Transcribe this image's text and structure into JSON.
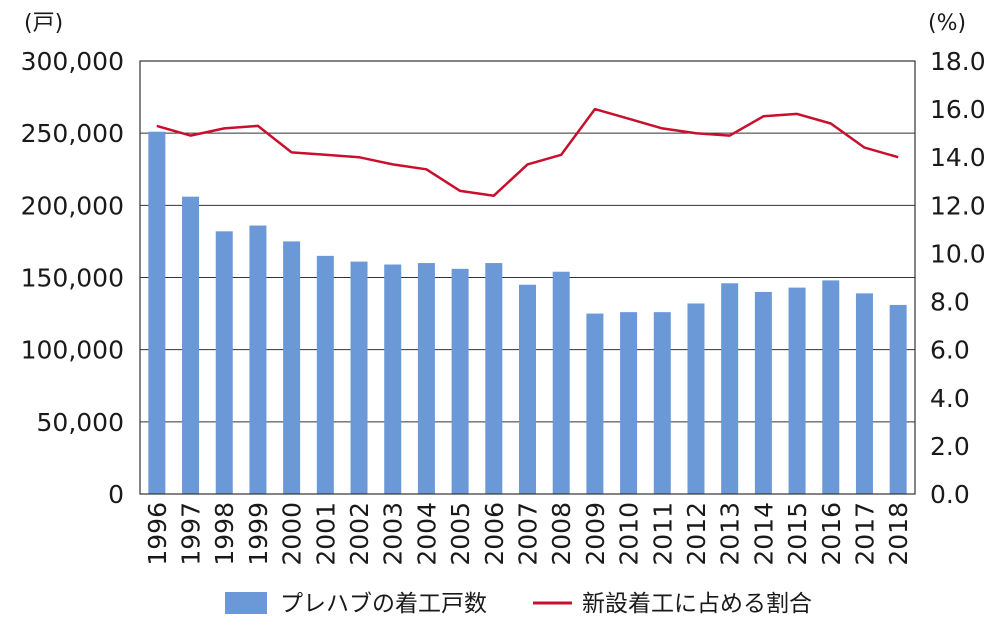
{
  "chart_data": {
    "type": "bar",
    "title": "",
    "categories": [
      "1996",
      "1997",
      "1998",
      "1999",
      "2000",
      "2001",
      "2002",
      "2003",
      "2004",
      "2005",
      "2006",
      "2007",
      "2008",
      "2009",
      "2010",
      "2011",
      "2012",
      "2013",
      "2014",
      "2015",
      "2016",
      "2017",
      "2018"
    ],
    "series": [
      {
        "name": "プレハブの着工戸数",
        "type": "bar",
        "axis": "left",
        "color": "#6b98d6",
        "values": [
          251000,
          206000,
          182000,
          186000,
          175000,
          165000,
          161000,
          159000,
          160000,
          156000,
          160000,
          145000,
          154000,
          125000,
          126000,
          126000,
          132000,
          146000,
          140000,
          143000,
          148000,
          139000,
          131000
        ]
      },
      {
        "name": "新設着工に占める割合",
        "type": "line",
        "axis": "right",
        "color": "#c8102e",
        "values": [
          15.3,
          14.9,
          15.2,
          15.3,
          14.2,
          14.1,
          14.0,
          13.7,
          13.5,
          12.6,
          12.4,
          13.7,
          14.1,
          16.0,
          15.6,
          15.2,
          15.0,
          14.9,
          15.7,
          15.8,
          15.4,
          14.4,
          14.0
        ]
      }
    ],
    "y_left": {
      "unit": "(戸)",
      "min": 0,
      "max": 300000,
      "ticks": [
        "0",
        "50,000",
        "100,000",
        "150,000",
        "200,000",
        "250,000",
        "300,000"
      ]
    },
    "y_right": {
      "unit": "(%)",
      "min": 0,
      "max": 18,
      "ticks": [
        "0.0",
        "2.0",
        "4.0",
        "6.0",
        "8.0",
        "10.0",
        "12.0",
        "14.0",
        "16.0",
        "18.0"
      ]
    },
    "grid": "horizontal",
    "legend_position": "bottom"
  }
}
